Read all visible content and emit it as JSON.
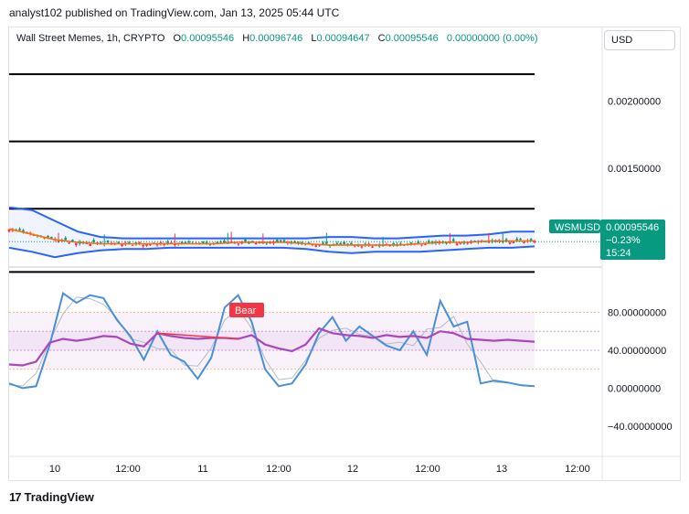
{
  "header": {
    "published": "analyst102 published on TradingView.com, Jan 13, 2025 05:44 UTC"
  },
  "legend": {
    "symbol": "Wall Street Memes, 1h, CRYPTO",
    "o_label": "O",
    "o": "0.00095546",
    "h_label": "H",
    "h": "0.00096746",
    "l_label": "L",
    "l": "0.00094647",
    "c_label": "C",
    "c": "0.00095546",
    "change": "0.00000000 (0.00%)"
  },
  "currency_button": "USD",
  "price_tag": {
    "ticker": "WSMUSD",
    "price": "0.00095546",
    "change": "−0.23%",
    "countdown": "15:24"
  },
  "bear_label": "Bear",
  "colors": {
    "up": "#089981",
    "down": "#f23645",
    "band": "#2962ff",
    "ma": "#ff6d00",
    "rsi": "#ab47bc",
    "stoch": "#4a8fd8"
  },
  "footer": {
    "brand": "TradingView"
  },
  "chart_data": [
    {
      "type": "candlestick",
      "pane": "price",
      "y_ticks": [
        "0.00200000",
        "0.00150000",
        "0.00100000"
      ],
      "ylim": [
        0.00078,
        0.00233
      ],
      "horizontal_levels": [
        0.0022,
        0.0017,
        0.0012,
        0.00073
      ],
      "x_ticks": [
        "10",
        "12:00",
        "11",
        "12:00",
        "12",
        "12:00",
        "13",
        "12:00"
      ],
      "bollinger_upper": [
        0.00121,
        0.00119,
        0.00111,
        0.00103,
        0.00099,
        0.00098,
        0.00098,
        0.00098,
        0.00098,
        0.00098,
        0.00098,
        0.00098,
        0.00098,
        0.00098,
        0.00099,
        0.00099,
        0.00098,
        0.00098,
        0.00099,
        0.001,
        0.001,
        0.00101,
        0.00103,
        0.00103
      ],
      "bollinger_lower": [
        0.00091,
        0.00088,
        0.00084,
        0.00087,
        0.00089,
        0.0009,
        0.0009,
        0.00091,
        0.00091,
        0.00091,
        0.00091,
        0.00091,
        0.00091,
        0.0009,
        0.00088,
        0.00087,
        0.00088,
        0.00088,
        0.00088,
        0.00089,
        0.0009,
        0.00091,
        0.00091,
        0.00092
      ],
      "moving_average": [
        0.00105,
        0.00101,
        0.00097,
        0.00095,
        0.00094,
        0.00094,
        0.00094,
        0.00094,
        0.00094,
        0.00094,
        0.00095,
        0.00095,
        0.00095,
        0.00094,
        0.00093,
        0.00093,
        0.00093,
        0.00093,
        0.00094,
        0.00095,
        0.00095,
        0.00096,
        0.00096,
        0.00096
      ]
    },
    {
      "type": "line",
      "pane": "oscillator",
      "y_ticks": [
        "80.00000000",
        "40.00000000",
        "0.00000000",
        "−40.00000000"
      ],
      "ylim": [
        -70,
        120
      ],
      "band_levels": [
        80,
        60,
        40,
        20
      ],
      "series": [
        {
          "values": [
            25,
            24,
            28,
            48,
            52,
            50,
            52,
            55,
            54,
            47,
            44,
            58,
            55,
            53,
            52,
            53,
            53,
            52,
            56,
            46,
            42,
            39,
            46,
            63,
            58,
            56,
            55,
            53,
            56,
            54,
            55,
            53,
            60,
            58,
            52,
            51,
            50,
            51,
            50,
            49
          ]
        },
        {
          "values": [
            5,
            0,
            2,
            45,
            100,
            90,
            98,
            95,
            72,
            55,
            30,
            60,
            35,
            28,
            10,
            32,
            85,
            98,
            70,
            20,
            2,
            5,
            25,
            58,
            75,
            50,
            65,
            55,
            45,
            40,
            60,
            35,
            92,
            65,
            70,
            5,
            8,
            6,
            3,
            2
          ]
        }
      ]
    }
  ]
}
